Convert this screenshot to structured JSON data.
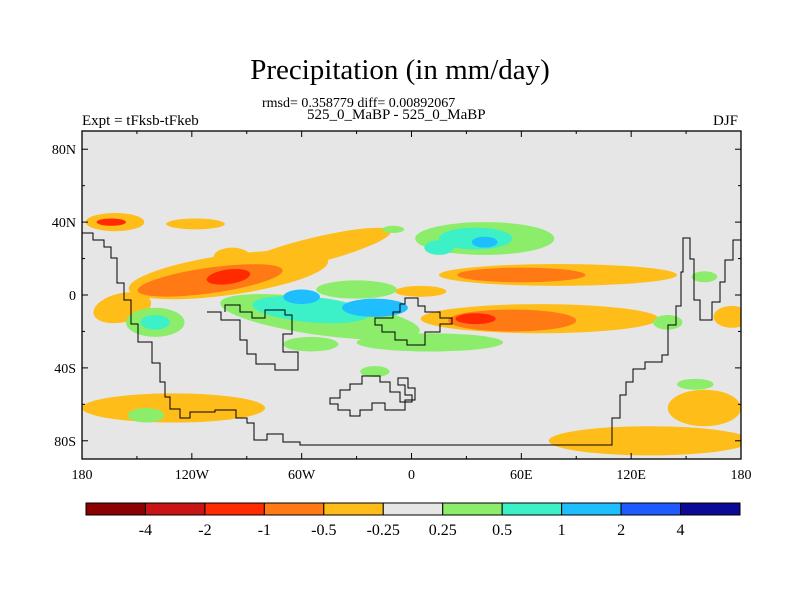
{
  "colors": {
    "frame": "#000000",
    "land_fill": "#e6e6e6"
  },
  "chart_data": {
    "type": "heatmap",
    "title": "Precipitation (in mm/day)",
    "stats_text": "rmsd= 0.358779 diff= 0.00892067",
    "subtitle": "525_0_MaBP - 525_0_MaBP",
    "left_label": "Expt = tFksb-tFkeb",
    "right_label": "DJF",
    "xlim": [
      -180,
      180
    ],
    "ylim": [
      -90,
      90
    ],
    "x_ticks": [
      {
        "value": -180,
        "label": "180"
      },
      {
        "value": -120,
        "label": "120W"
      },
      {
        "value": -60,
        "label": "60W"
      },
      {
        "value": 0,
        "label": "0"
      },
      {
        "value": 60,
        "label": "60E"
      },
      {
        "value": 120,
        "label": "120E"
      },
      {
        "value": 180,
        "label": "180"
      }
    ],
    "y_ticks": [
      {
        "value": 80,
        "label": "80N"
      },
      {
        "value": 40,
        "label": "40N"
      },
      {
        "value": 0,
        "label": "0"
      },
      {
        "value": -40,
        "label": "40S"
      },
      {
        "value": -80,
        "label": "80S"
      }
    ],
    "colorbar": {
      "colors": [
        "#8b0000",
        "#c81414",
        "#ff2a00",
        "#ff7a14",
        "#ffbd1a",
        "#e6e6e6",
        "#8ced6a",
        "#3cf0c8",
        "#1ebeff",
        "#1e5aff",
        "#0a0a96"
      ],
      "labels": [
        "-4",
        "-2",
        "-1",
        "-0.5",
        "-0.25",
        "0.25",
        "0.5",
        "1",
        "2",
        "4"
      ]
    },
    "anomalies": [
      {
        "lon": -158,
        "lat": -7,
        "rx": 16,
        "ry": 8,
        "rot": -12,
        "level": -0.25
      },
      {
        "lon": -100,
        "lat": 11,
        "rx": 55,
        "ry": 11,
        "rot": -8,
        "level": -0.25
      },
      {
        "lon": -110,
        "lat": 8,
        "rx": 40,
        "ry": 7,
        "rot": -8,
        "level": -0.5
      },
      {
        "lon": -100,
        "lat": 10,
        "rx": 12,
        "ry": 4,
        "rot": -8,
        "level": -1
      },
      {
        "lon": -55,
        "lat": 24,
        "rx": 45,
        "ry": 7,
        "rot": -14,
        "level": -0.25
      },
      {
        "lon": -98,
        "lat": 21,
        "rx": 10,
        "ry": 5,
        "rot": 0,
        "level": -0.25
      },
      {
        "lon": 80,
        "lat": 11,
        "rx": 65,
        "ry": 6,
        "rot": 0,
        "level": -0.25
      },
      {
        "lon": 60,
        "lat": 11,
        "rx": 35,
        "ry": 4,
        "rot": 0,
        "level": -0.5
      },
      {
        "lon": 70,
        "lat": -13,
        "rx": 65,
        "ry": 8,
        "rot": 0,
        "level": -0.25
      },
      {
        "lon": 55,
        "lat": -14,
        "rx": 35,
        "ry": 6,
        "rot": 0,
        "level": -0.5
      },
      {
        "lon": 35,
        "lat": -13,
        "rx": 11,
        "ry": 3,
        "rot": 0,
        "level": -1
      },
      {
        "lon": -118,
        "lat": 39,
        "rx": 16,
        "ry": 3,
        "rot": 0,
        "level": -0.25
      },
      {
        "lon": -162,
        "lat": 40,
        "rx": 16,
        "ry": 5,
        "rot": 0,
        "level": -0.25
      },
      {
        "lon": -164,
        "lat": 40,
        "rx": 8,
        "ry": 2,
        "rot": 0,
        "level": -1
      },
      {
        "lon": -130,
        "lat": -62,
        "rx": 50,
        "ry": 8,
        "rot": 0,
        "level": -0.25
      },
      {
        "lon": 160,
        "lat": -62,
        "rx": 20,
        "ry": 10,
        "rot": 0,
        "level": -0.25
      },
      {
        "lon": 130,
        "lat": -80,
        "rx": 55,
        "ry": 8,
        "rot": 0,
        "level": -0.25
      },
      {
        "lon": 175,
        "lat": -12,
        "rx": 10,
        "ry": 6,
        "rot": 0,
        "level": -0.25
      },
      {
        "lon": -30,
        "lat": 3,
        "rx": 22,
        "ry": 5,
        "rot": 0,
        "level": 0.25
      },
      {
        "lon": 5,
        "lat": 2,
        "rx": 14,
        "ry": 3,
        "rot": 0,
        "level": -0.25
      },
      {
        "lon": -50,
        "lat": -12,
        "rx": 55,
        "ry": 10,
        "rot": 8,
        "level": 0.25
      },
      {
        "lon": -55,
        "lat": -8,
        "rx": 32,
        "ry": 7,
        "rot": 5,
        "level": 0.5
      },
      {
        "lon": -60,
        "lat": -1,
        "rx": 10,
        "ry": 4,
        "rot": 0,
        "level": 1
      },
      {
        "lon": -20,
        "lat": -7,
        "rx": 18,
        "ry": 5,
        "rot": 0,
        "level": 1
      },
      {
        "lon": -140,
        "lat": -15,
        "rx": 16,
        "ry": 8,
        "rot": 0,
        "level": 0.25
      },
      {
        "lon": -140,
        "lat": -15,
        "rx": 8,
        "ry": 4,
        "rot": 0,
        "level": 0.5
      },
      {
        "lon": 40,
        "lat": 31,
        "rx": 38,
        "ry": 9,
        "rot": 0,
        "level": 0.25
      },
      {
        "lon": 35,
        "lat": 31,
        "rx": 20,
        "ry": 6,
        "rot": 0,
        "level": 0.5
      },
      {
        "lon": 40,
        "lat": 29,
        "rx": 7,
        "ry": 3,
        "rot": 0,
        "level": 1
      },
      {
        "lon": 15,
        "lat": 26,
        "rx": 8,
        "ry": 4,
        "rot": 0,
        "level": 0.5
      },
      {
        "lon": 10,
        "lat": -26,
        "rx": 40,
        "ry": 5,
        "rot": 0,
        "level": 0.25
      },
      {
        "lon": -55,
        "lat": -27,
        "rx": 15,
        "ry": 4,
        "rot": 0,
        "level": 0.25
      },
      {
        "lon": -20,
        "lat": -42,
        "rx": 8,
        "ry": 3,
        "rot": 0,
        "level": 0.25
      },
      {
        "lon": 155,
        "lat": -49,
        "rx": 10,
        "ry": 3,
        "rot": 0,
        "level": 0.25
      },
      {
        "lon": 160,
        "lat": 10,
        "rx": 7,
        "ry": 3,
        "rot": 0,
        "level": 0.25
      },
      {
        "lon": -145,
        "lat": -66,
        "rx": 10,
        "ry": 4,
        "rot": 0,
        "level": 0.25
      },
      {
        "lon": 140,
        "lat": -15,
        "rx": 8,
        "ry": 4,
        "rot": 0,
        "level": 0.25
      },
      {
        "lon": -10,
        "lat": 36,
        "rx": 6,
        "ry": 2,
        "rot": 0,
        "level": 0.25
      }
    ]
  }
}
